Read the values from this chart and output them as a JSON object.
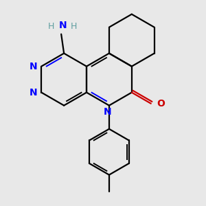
{
  "background_color": "#e8e8e8",
  "atom_colors": {
    "N": "#0000ff",
    "O": "#cc0000",
    "H": "#5f9ea0",
    "C": "#000000"
  },
  "bond_lw": 1.6,
  "inner_lw": 1.4,
  "font_size": 10,
  "figsize": [
    3.0,
    3.0
  ],
  "dpi": 100
}
